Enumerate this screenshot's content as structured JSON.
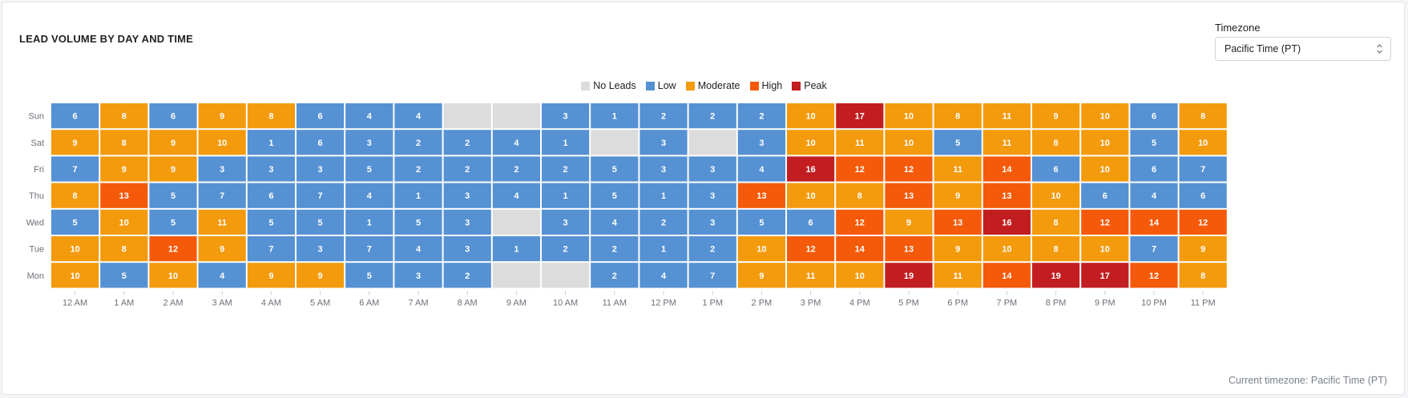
{
  "header": {
    "title": "LEAD VOLUME BY DAY AND TIME",
    "timezone_label": "Timezone",
    "timezone_value": "Pacific Time (PT)"
  },
  "footer": {
    "current_timezone": "Current timezone: Pacific Time (PT)"
  },
  "legend": [
    {
      "label": "No Leads",
      "color": "#dcdcdc"
    },
    {
      "label": "Low",
      "color": "#5591d3"
    },
    {
      "label": "Moderate",
      "color": "#f39a0d"
    },
    {
      "label": "High",
      "color": "#f55a0a"
    },
    {
      "label": "Peak",
      "color": "#c21e21"
    }
  ],
  "chart_data": {
    "type": "heatmap",
    "title": "LEAD VOLUME BY DAY AND TIME",
    "x": [
      "12 AM",
      "1 AM",
      "2 AM",
      "3 AM",
      "4 AM",
      "5 AM",
      "6 AM",
      "7 AM",
      "8 AM",
      "9 AM",
      "10 AM",
      "11 AM",
      "12 PM",
      "1 PM",
      "2 PM",
      "3 PM",
      "4 PM",
      "5 PM",
      "6 PM",
      "7 PM",
      "8 PM",
      "9 PM",
      "10 PM",
      "11 PM"
    ],
    "y": [
      "Sun",
      "Sat",
      "Fri",
      "Thu",
      "Wed",
      "Tue",
      "Mon"
    ],
    "values": [
      [
        6,
        8,
        6,
        9,
        8,
        6,
        4,
        4,
        null,
        null,
        3,
        1,
        2,
        2,
        2,
        10,
        17,
        10,
        8,
        11,
        9,
        10,
        6,
        8
      ],
      [
        9,
        8,
        9,
        10,
        1,
        6,
        3,
        2,
        2,
        4,
        1,
        null,
        3,
        null,
        3,
        10,
        11,
        10,
        5,
        11,
        8,
        10,
        5,
        10
      ],
      [
        7,
        9,
        9,
        3,
        3,
        3,
        5,
        2,
        2,
        2,
        2,
        5,
        3,
        3,
        4,
        16,
        12,
        12,
        11,
        14,
        6,
        10,
        6,
        7
      ],
      [
        8,
        13,
        5,
        7,
        6,
        7,
        4,
        1,
        3,
        4,
        1,
        5,
        1,
        3,
        13,
        10,
        8,
        13,
        9,
        13,
        10,
        6,
        4,
        6
      ],
      [
        5,
        10,
        5,
        11,
        5,
        5,
        1,
        5,
        3,
        null,
        3,
        4,
        2,
        3,
        5,
        6,
        12,
        9,
        13,
        16,
        8,
        12,
        14,
        12
      ],
      [
        10,
        8,
        12,
        9,
        7,
        3,
        7,
        4,
        3,
        1,
        2,
        2,
        1,
        2,
        10,
        12,
        14,
        13,
        9,
        10,
        8,
        10,
        7,
        9
      ],
      [
        10,
        5,
        10,
        4,
        9,
        9,
        5,
        3,
        2,
        null,
        null,
        2,
        4,
        7,
        9,
        11,
        10,
        19,
        11,
        14,
        19,
        17,
        12,
        8
      ]
    ],
    "levels": [
      {
        "label": "No Leads",
        "color": "#dcdcdc"
      },
      {
        "label": "Low",
        "color": "#5591d3",
        "max": 7
      },
      {
        "label": "Moderate",
        "color": "#f39a0d",
        "max": 11
      },
      {
        "label": "High",
        "color": "#f55a0a",
        "max": 15
      },
      {
        "label": "Peak",
        "color": "#c21e21"
      }
    ],
    "legend_position": "top-center"
  }
}
